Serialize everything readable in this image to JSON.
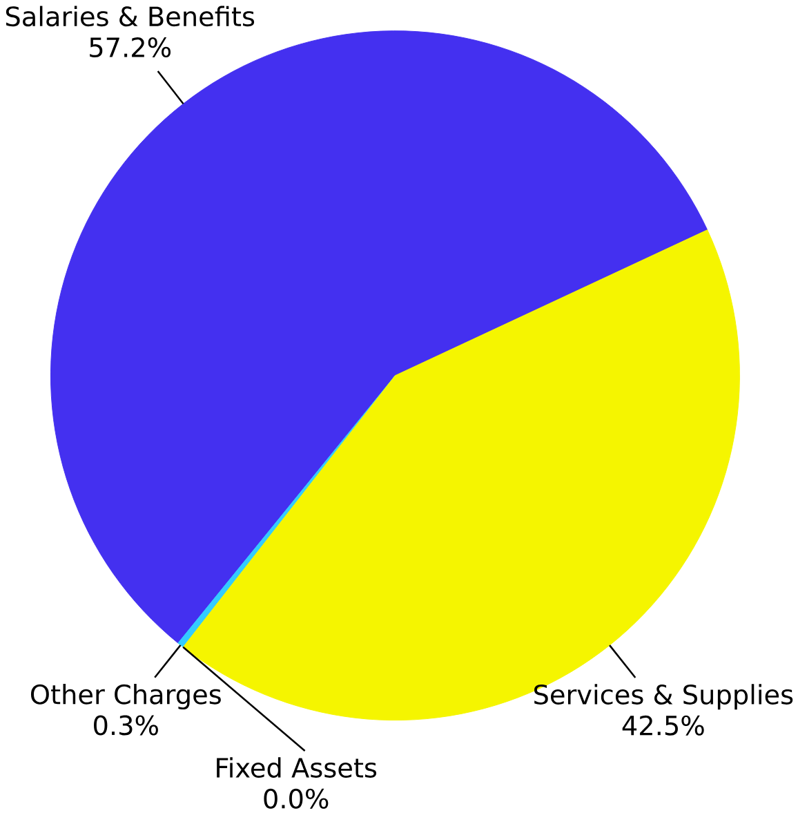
{
  "chart_data": {
    "type": "pie",
    "categories": [
      "Salaries & Benefits",
      "Other Charges",
      "Fixed Assets",
      "Services & Supplies"
    ],
    "values": [
      57.2,
      0.3,
      0.0,
      42.5
    ],
    "value_labels": [
      "57.2%",
      "0.3%",
      "0.0%",
      "42.5%"
    ],
    "colors": [
      "#4430f0",
      "#33ccff",
      "#00a050",
      "#f5f500"
    ]
  }
}
